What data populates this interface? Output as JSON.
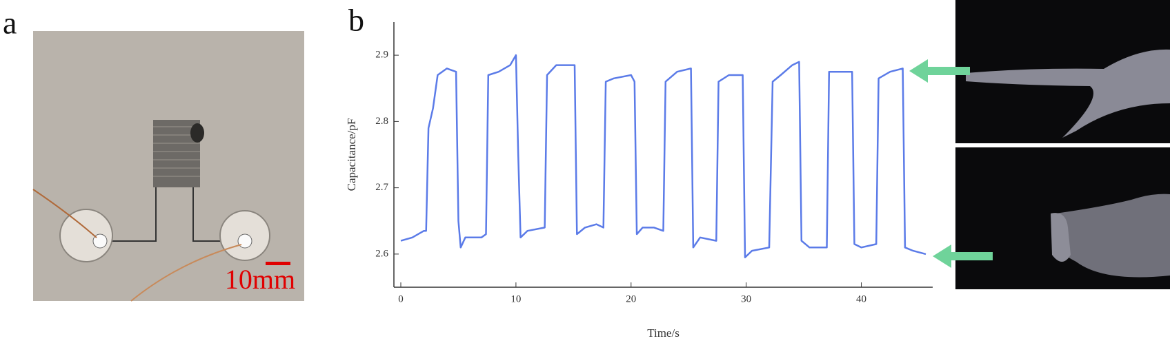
{
  "panels": {
    "a": "a",
    "b": "b"
  },
  "scale_bar": "10mm",
  "chart_data": {
    "type": "line",
    "xlabel": "Time/s",
    "ylabel": "Capacitance/pF",
    "color": "#5b7be8",
    "x": [
      0,
      1,
      2,
      2.2,
      2.4,
      2.8,
      3.2,
      4,
      4.8,
      5.0,
      5.2,
      5.6,
      7,
      7.4,
      7.6,
      8.5,
      9.5,
      10,
      10.2,
      10.4,
      11,
      12.5,
      12.7,
      13.5,
      14.5,
      15.1,
      15.3,
      16,
      17,
      17.6,
      17.8,
      18.5,
      20,
      20.3,
      20.5,
      21,
      22,
      22.8,
      23,
      24,
      25.2,
      25.4,
      26,
      27.4,
      27.6,
      28.5,
      29.7,
      29.9,
      30.5,
      32,
      32.3,
      33,
      34,
      34.6,
      34.8,
      35.5,
      37,
      37.2,
      38.5,
      39.2,
      39.4,
      40,
      41.3,
      41.5,
      42.5,
      43.6,
      43.8,
      44.5,
      45.6
    ],
    "values": [
      2.62,
      2.625,
      2.635,
      2.635,
      2.79,
      2.82,
      2.87,
      2.88,
      2.875,
      2.65,
      2.61,
      2.625,
      2.625,
      2.63,
      2.87,
      2.875,
      2.885,
      2.9,
      2.75,
      2.625,
      2.635,
      2.64,
      2.87,
      2.885,
      2.885,
      2.885,
      2.63,
      2.64,
      2.645,
      2.64,
      2.86,
      2.865,
      2.87,
      2.86,
      2.63,
      2.64,
      2.64,
      2.635,
      2.86,
      2.875,
      2.88,
      2.61,
      2.625,
      2.62,
      2.86,
      2.87,
      2.87,
      2.595,
      2.605,
      2.61,
      2.86,
      2.87,
      2.885,
      2.89,
      2.62,
      2.61,
      2.61,
      2.875,
      2.875,
      2.875,
      2.615,
      2.61,
      2.615,
      2.865,
      2.875,
      2.88,
      2.61,
      2.605,
      2.6
    ],
    "xlim": [
      -0.6,
      46.2
    ],
    "ylim": [
      2.55,
      2.95
    ],
    "xticks": [
      0,
      10,
      20,
      30,
      40
    ],
    "yticks": [
      2.6,
      2.7,
      2.8,
      2.9
    ]
  }
}
